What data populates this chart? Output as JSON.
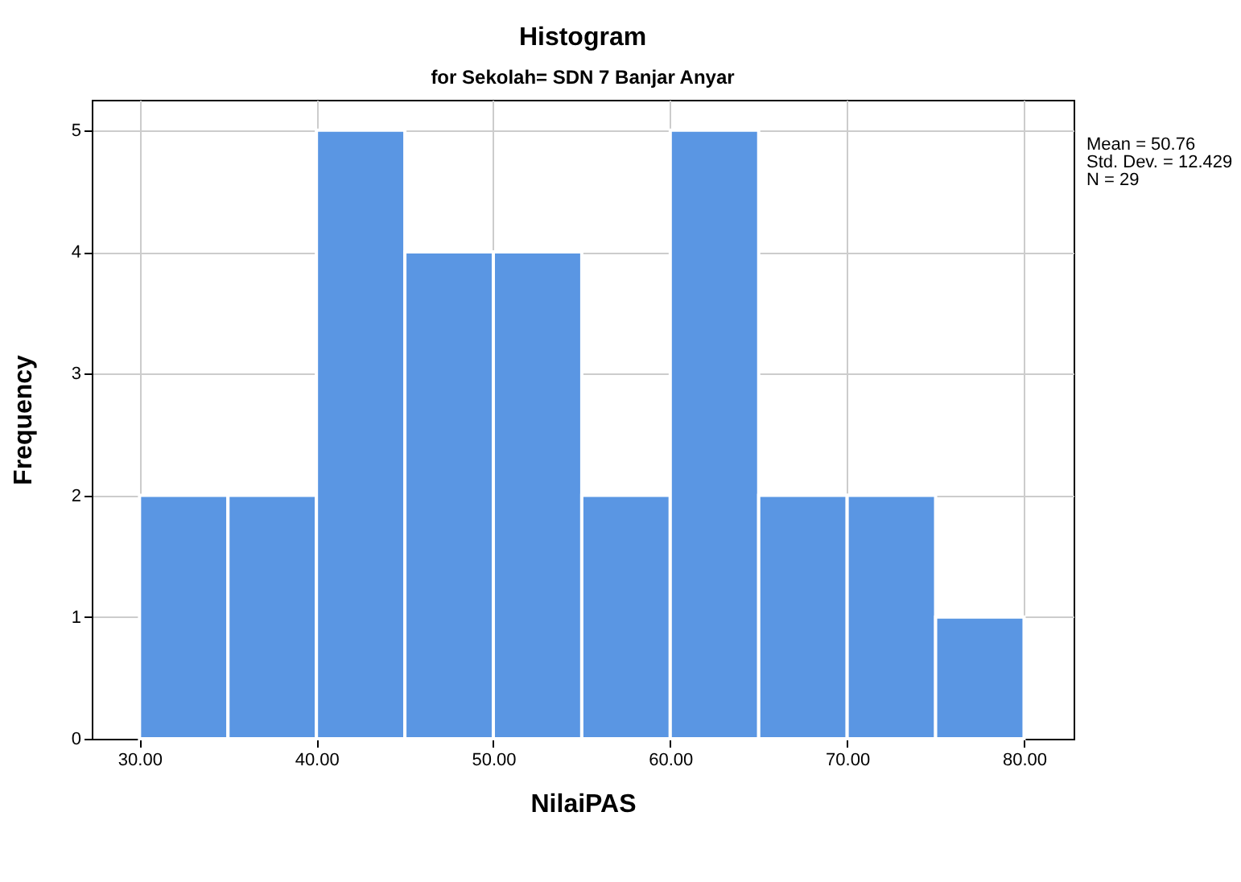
{
  "chart_data": {
    "type": "histogram",
    "title": "Histogram",
    "subtitle": "for Sekolah= SDN 7 Banjar Anyar",
    "xlabel": "NilaiPAS",
    "ylabel": "Frequency",
    "bins": [
      30,
      35,
      40,
      45,
      50,
      55,
      60,
      65,
      70,
      75,
      80
    ],
    "values": [
      2,
      2,
      5,
      4,
      4,
      2,
      5,
      2,
      2,
      1
    ],
    "color": "#5a96e3",
    "xlim": [
      27.3,
      82.8
    ],
    "xticks": [
      {
        "value": 30,
        "label": "30.00"
      },
      {
        "value": 40,
        "label": "40.00"
      },
      {
        "value": 50,
        "label": "50.00"
      },
      {
        "value": 60,
        "label": "60.00"
      },
      {
        "value": 70,
        "label": "70.00"
      },
      {
        "value": 80,
        "label": "80.00"
      }
    ],
    "ylim": [
      0,
      5.25
    ],
    "yticks": [
      0,
      1,
      2,
      3,
      4,
      5
    ],
    "grid": true,
    "annotations": [
      "Mean = 50.76",
      "Std. Dev. = 12.429",
      "N = 29"
    ]
  }
}
